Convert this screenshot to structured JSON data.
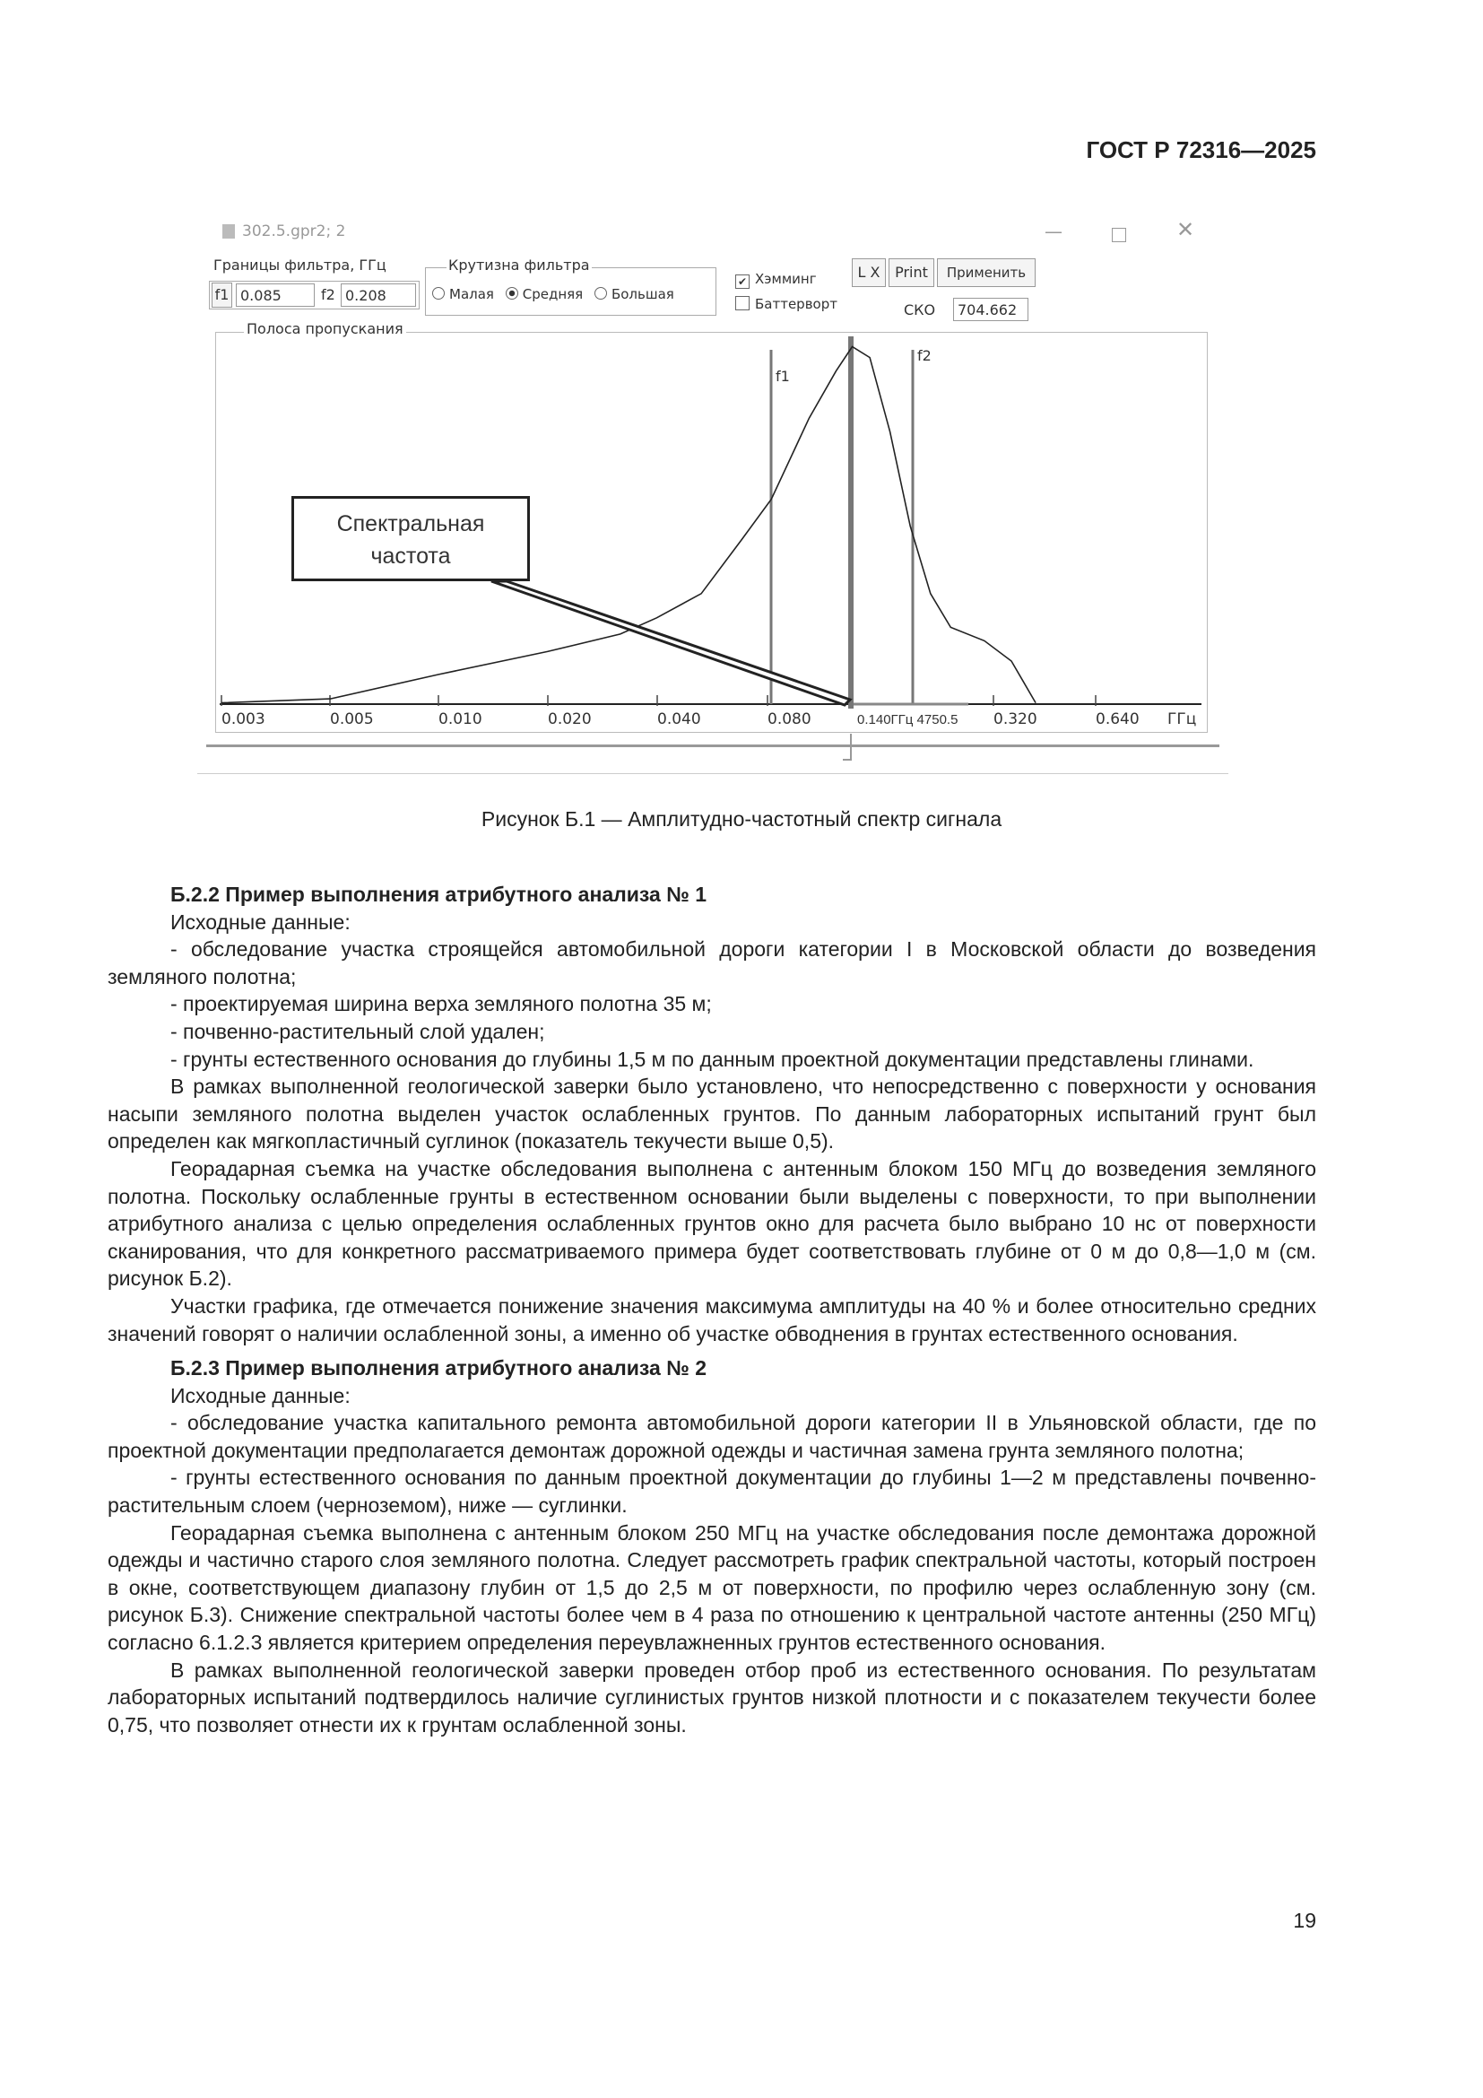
{
  "header": {
    "doc_code": "ГОСТ Р 72316—2025"
  },
  "window": {
    "title": "302.5.gpr2; 2",
    "filter_bounds": {
      "label": "Границы фильтра, ГГц",
      "f1_label": "f1",
      "f1_value": "0.085",
      "f2_label": "f2",
      "f2_value": "0.208"
    },
    "steepness": {
      "label": "Крутизна фильтра",
      "options": [
        "Малая",
        "Средняя",
        "Большая"
      ],
      "selected": "Средняя"
    },
    "hamming": {
      "label": "Хэмминг",
      "checked": true
    },
    "butterworth": {
      "label": "Баттерворт",
      "checked": false
    },
    "buttons": {
      "lx": "L X",
      "print": "Print",
      "apply": "Применить"
    },
    "sko": {
      "label": "СКО",
      "value": "704.662"
    },
    "passband_label": "Полоса пропускания",
    "callout": "Спектральная частота",
    "chart_data": {
      "type": "line",
      "x_scale": "log",
      "xlabel": "ГГц",
      "tick_labels": [
        "0.003",
        "0.005",
        "0.010",
        "0.020",
        "0.040",
        "0.080",
        "0.320",
        "0.640"
      ],
      "cursor_readout": "0.140ГГц 4750.5",
      "markers": [
        {
          "label": "f1",
          "x": 0.085
        },
        {
          "label": "f2",
          "x": 0.208
        }
      ],
      "grid": false
    }
  },
  "caption": "Рисунок Б.1 — Амплитудно-частотный спектр сигнала",
  "sections": [
    {
      "title": "Б.2.2 Пример выполнения атрибутного анализа № 1",
      "paragraphs": [
        "Исходные данные:",
        "- обследование участка строящейся автомобильной дороги категории I в Московской области до возведения земляного полотна;",
        "- проектируемая ширина верха земляного полотна 35 м;",
        "- почвенно-растительный слой удален;",
        "- грунты естественного основания до глубины 1,5 м по данным проектной документации представлены глинами.",
        "В рамках выполненной геологической заверки было установлено, что непосредственно с поверхности у основания насыпи земляного полотна выделен участок ослабленных грунтов. По данным лабораторных испытаний грунт был определен как мягкопластичный суглинок (показатель текучести выше 0,5).",
        "Георадарная съемка на участке обследования выполнена с антенным блоком 150 МГц до возведения земляного полотна. Поскольку ослабленные грунты в естественном основании были выделены с поверхности, то при выполнении атрибутного анализа с целью определения ослабленных грунтов окно для расчета было выбрано 10 нс от поверхности сканирования, что для конкретного рассматриваемого примера будет соответствовать глубине от 0 м до 0,8—1,0 м (см. рисунок Б.2).",
        "Участки графика, где отмечается понижение значения максимума амплитуды на 40 % и более относительно средних значений говорят о наличии ослабленной зоны, а именно об участке обводнения в грунтах естественного основания."
      ]
    },
    {
      "title": "Б.2.3 Пример выполнения атрибутного анализа № 2",
      "paragraphs": [
        "Исходные данные:",
        "- обследование участка капитального ремонта автомобильной дороги категории II в Ульяновской области, где по проектной документации предполагается демонтаж дорожной одежды и частичная замена грунта земляного полотна;",
        "- грунты естественного основания по данным проектной документации до глубины 1—2 м представлены почвенно-растительным слоем (черноземом), ниже — суглинки.",
        "Георадарная съемка выполнена с антенным блоком 250 МГц на участке обследования после демонтажа дорожной одежды и частично старого слоя земляного полотна. Следует рассмотреть график спектральной частоты, который построен в окне, соответствующем диапазону глубин от 1,5 до 2,5 м от поверхности, по профилю через ослабленную зону (см. рисунок Б.3). Снижение спектральной частоты более чем в 4 раза по отношению к центральной частоте антенны (250 МГц) согласно 6.1.2.3 является критерием определения переувлажненных грунтов естественного основания.",
        "В рамках выполненной геологической заверки проведен отбор проб из естественного основания. По результатам лабораторных испытаний подтвердилось наличие суглинистых грунтов низкой плотности и с показателем текучести более 0,75, что позволяет отнести их к грунтам ослабленной зоны."
      ]
    }
  ],
  "page_number": "19"
}
